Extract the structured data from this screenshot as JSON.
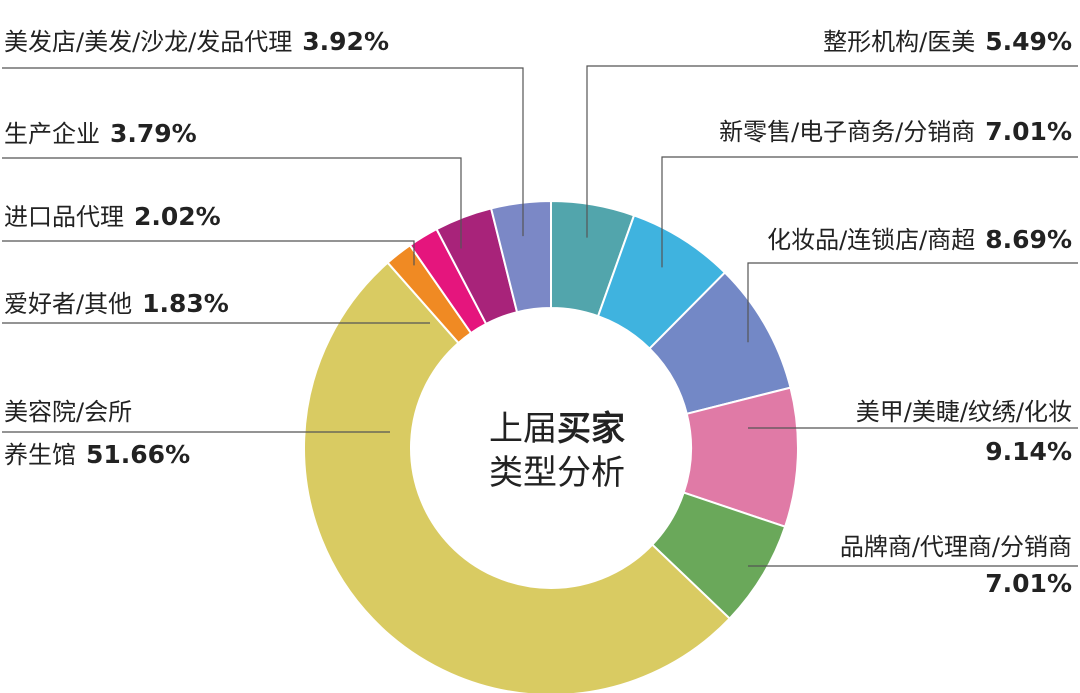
{
  "chart_data": {
    "type": "pie",
    "donut": true,
    "title_line1_normal": "上届",
    "title_line1_bold": "买家",
    "title_line2": "类型分析",
    "slices": [
      {
        "label": "整形机构/医美",
        "value": 5.49,
        "value_text": "5.49%",
        "color": "#52a5ac"
      },
      {
        "label": "新零售/电子商务/分销商",
        "value": 7.01,
        "value_text": "7.01%",
        "color": "#3fb3df"
      },
      {
        "label": "化妆品/连锁店/商超",
        "value": 8.69,
        "value_text": "8.69%",
        "color": "#7388c6"
      },
      {
        "label": "美甲/美睫/纹绣/化妆",
        "value": 9.14,
        "value_text": "9.14%",
        "color": "#e07aa6"
      },
      {
        "label": "品牌商/代理商/分销商",
        "value": 7.01,
        "value_text": "7.01%",
        "color": "#6aa85a"
      },
      {
        "label": "美容院/会所养生馆",
        "label_line1": "美容院/会所",
        "label_line2": "养生馆",
        "value": 51.66,
        "value_text": "51.66%",
        "color": "#d9cb62"
      },
      {
        "label": "爱好者/其他",
        "value": 1.83,
        "value_text": "1.83%",
        "color": "#f08a23"
      },
      {
        "label": "进口品代理",
        "value": 2.02,
        "value_text": "2.02%",
        "color": "#e5157d"
      },
      {
        "label": "生产企业",
        "value": 3.79,
        "value_text": "3.79%",
        "color": "#a8237a"
      },
      {
        "label": "美发店/美发/沙龙/发品代理",
        "value": 3.92,
        "value_text": "3.92%",
        "color": "#7b88c6"
      }
    ]
  }
}
